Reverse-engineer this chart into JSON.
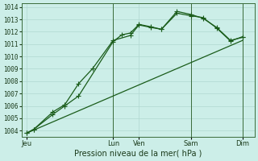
{
  "xlabel": "Pression niveau de la mer( hPa )",
  "ylim": [
    1003.5,
    1014.3
  ],
  "yticks": [
    1004,
    1005,
    1006,
    1007,
    1008,
    1009,
    1010,
    1011,
    1012,
    1013,
    1014
  ],
  "bg_color": "#cceee8",
  "grid_color": "#b0d8d0",
  "line_color": "#1a5c1a",
  "xtick_labels": [
    "Jeu",
    "Lun",
    "Ven",
    "Sam",
    "Dim"
  ],
  "xtick_pos": [
    0.0,
    5.0,
    6.5,
    9.5,
    12.5
  ],
  "vline_positions": [
    5.0,
    9.5,
    12.5
  ],
  "line1_x": [
    0.0,
    0.4,
    1.5,
    2.2,
    3.0,
    5.0,
    5.5,
    6.0,
    6.5,
    7.2,
    7.8,
    8.7,
    9.5,
    10.2,
    11.0,
    11.8,
    12.5
  ],
  "line1_y": [
    1003.8,
    1004.1,
    1005.3,
    1006.0,
    1006.8,
    1011.2,
    1011.75,
    1011.9,
    1012.6,
    1012.4,
    1012.2,
    1013.5,
    1013.3,
    1013.15,
    1012.3,
    1011.25,
    1011.6
  ],
  "line2_x": [
    0.0,
    0.4,
    1.5,
    2.2,
    3.0,
    3.8,
    5.0,
    6.0,
    6.5,
    7.2,
    7.8,
    8.7,
    9.5,
    10.2,
    11.0,
    11.8,
    12.5
  ],
  "line2_y": [
    1003.8,
    1004.1,
    1005.5,
    1006.1,
    1007.8,
    1009.0,
    1011.3,
    1011.7,
    1012.55,
    1012.35,
    1012.2,
    1013.65,
    1013.4,
    1013.1,
    1012.35,
    1011.3,
    1011.55
  ],
  "line3_x": [
    0.0,
    12.5
  ],
  "line3_y": [
    1003.8,
    1011.3
  ],
  "marker_size": 3.5,
  "linewidth": 0.9,
  "xlim": [
    -0.3,
    13.2
  ]
}
